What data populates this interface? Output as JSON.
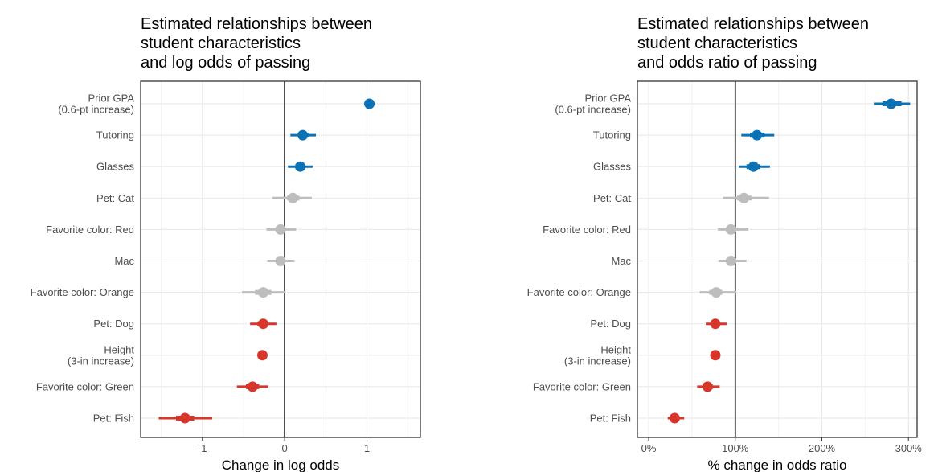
{
  "chart_data": [
    {
      "type": "forest",
      "title": [
        "Estimated relationships between",
        "student characteristics",
        "and log odds of passing"
      ],
      "xlabel": "Change in log odds",
      "xlim": [
        -1.75,
        1.65
      ],
      "xticks": [
        -1,
        0,
        1
      ],
      "tick_labels": [
        "-1",
        "0",
        "1"
      ],
      "reference_line": 0,
      "categories": [
        {
          "label": [
            "Prior GPA",
            "(0.6-pt increase)"
          ],
          "estimate": 1.03,
          "low": 0.97,
          "high": 1.1,
          "inner_low": 1.0,
          "inner_high": 1.07,
          "color": "#0b72b5"
        },
        {
          "label": [
            "Tutoring"
          ],
          "estimate": 0.22,
          "low": 0.07,
          "high": 0.38,
          "inner_low": 0.16,
          "inner_high": 0.29,
          "color": "#0b72b5"
        },
        {
          "label": [
            "Glasses"
          ],
          "estimate": 0.19,
          "low": 0.04,
          "high": 0.34,
          "inner_low": 0.13,
          "inner_high": 0.25,
          "color": "#0b72b5"
        },
        {
          "label": [
            "Pet: Cat"
          ],
          "estimate": 0.1,
          "low": -0.15,
          "high": 0.33,
          "inner_low": 0.03,
          "inner_high": 0.18,
          "color": "#bdbdbd"
        },
        {
          "label": [
            "Favorite color: Red"
          ],
          "estimate": -0.05,
          "low": -0.22,
          "high": 0.14,
          "inner_low": -0.1,
          "inner_high": 0.01,
          "color": "#bdbdbd"
        },
        {
          "label": [
            "Mac"
          ],
          "estimate": -0.05,
          "low": -0.21,
          "high": 0.12,
          "inner_low": -0.1,
          "inner_high": 0.01,
          "color": "#bdbdbd"
        },
        {
          "label": [
            "Favorite color: Orange"
          ],
          "estimate": -0.26,
          "low": -0.52,
          "high": 0.01,
          "inner_low": -0.36,
          "inner_high": -0.16,
          "color": "#bdbdbd"
        },
        {
          "label": [
            "Pet: Dog"
          ],
          "estimate": -0.26,
          "low": -0.42,
          "high": -0.1,
          "inner_low": -0.33,
          "inner_high": -0.2,
          "color": "#d7372a"
        },
        {
          "label": [
            "Height",
            "(3-in increase)"
          ],
          "estimate": -0.27,
          "low": -0.32,
          "high": -0.21,
          "inner_low": -0.3,
          "inner_high": -0.24,
          "color": "#d7372a"
        },
        {
          "label": [
            "Favorite color: Green"
          ],
          "estimate": -0.39,
          "low": -0.58,
          "high": -0.2,
          "inner_low": -0.47,
          "inner_high": -0.31,
          "color": "#d7372a"
        },
        {
          "label": [
            "Pet: Fish"
          ],
          "estimate": -1.21,
          "low": -1.53,
          "high": -0.88,
          "inner_low": -1.32,
          "inner_high": -1.1,
          "color": "#d7372a"
        }
      ]
    },
    {
      "type": "forest",
      "title": [
        "Estimated relationships between",
        "student characteristics",
        "and odds ratio of passing"
      ],
      "xlabel": "% change in odds ratio",
      "xlim": [
        -0.13,
        3.1
      ],
      "xticks": [
        0,
        1,
        2,
        3
      ],
      "tick_labels": [
        "0%",
        "100%",
        "200%",
        "300%"
      ],
      "reference_line": 1,
      "categories": [
        {
          "label": [
            "Prior GPA",
            "(0.6-pt increase)"
          ],
          "estimate": 2.8,
          "low": 2.6,
          "high": 3.02,
          "inner_low": 2.7,
          "inner_high": 2.92,
          "color": "#0b72b5"
        },
        {
          "label": [
            "Tutoring"
          ],
          "estimate": 1.25,
          "low": 1.07,
          "high": 1.45,
          "inner_low": 1.17,
          "inner_high": 1.34,
          "color": "#0b72b5"
        },
        {
          "label": [
            "Glasses"
          ],
          "estimate": 1.21,
          "low": 1.04,
          "high": 1.4,
          "inner_low": 1.13,
          "inner_high": 1.29,
          "color": "#0b72b5"
        },
        {
          "label": [
            "Pet: Cat"
          ],
          "estimate": 1.1,
          "low": 0.86,
          "high": 1.39,
          "inner_low": 1.02,
          "inner_high": 1.19,
          "color": "#bdbdbd"
        },
        {
          "label": [
            "Favorite color: Red"
          ],
          "estimate": 0.95,
          "low": 0.8,
          "high": 1.15,
          "inner_low": 0.9,
          "inner_high": 1.01,
          "color": "#bdbdbd"
        },
        {
          "label": [
            "Mac"
          ],
          "estimate": 0.95,
          "low": 0.81,
          "high": 1.13,
          "inner_low": 0.9,
          "inner_high": 1.01,
          "color": "#bdbdbd"
        },
        {
          "label": [
            "Favorite color: Orange"
          ],
          "estimate": 0.78,
          "low": 0.59,
          "high": 1.01,
          "inner_low": 0.7,
          "inner_high": 0.85,
          "color": "#bdbdbd"
        },
        {
          "label": [
            "Pet: Dog"
          ],
          "estimate": 0.77,
          "low": 0.66,
          "high": 0.9,
          "inner_low": 0.72,
          "inner_high": 0.82,
          "color": "#d7372a"
        },
        {
          "label": [
            "Height",
            "(3-in increase)"
          ],
          "estimate": 0.77,
          "low": 0.73,
          "high": 0.81,
          "inner_low": 0.74,
          "inner_high": 0.79,
          "color": "#d7372a"
        },
        {
          "label": [
            "Favorite color: Green"
          ],
          "estimate": 0.68,
          "low": 0.56,
          "high": 0.82,
          "inner_low": 0.63,
          "inner_high": 0.74,
          "color": "#d7372a"
        },
        {
          "label": [
            "Pet: Fish"
          ],
          "estimate": 0.3,
          "low": 0.22,
          "high": 0.41,
          "inner_low": 0.26,
          "inner_high": 0.35,
          "color": "#d7372a"
        }
      ]
    }
  ]
}
